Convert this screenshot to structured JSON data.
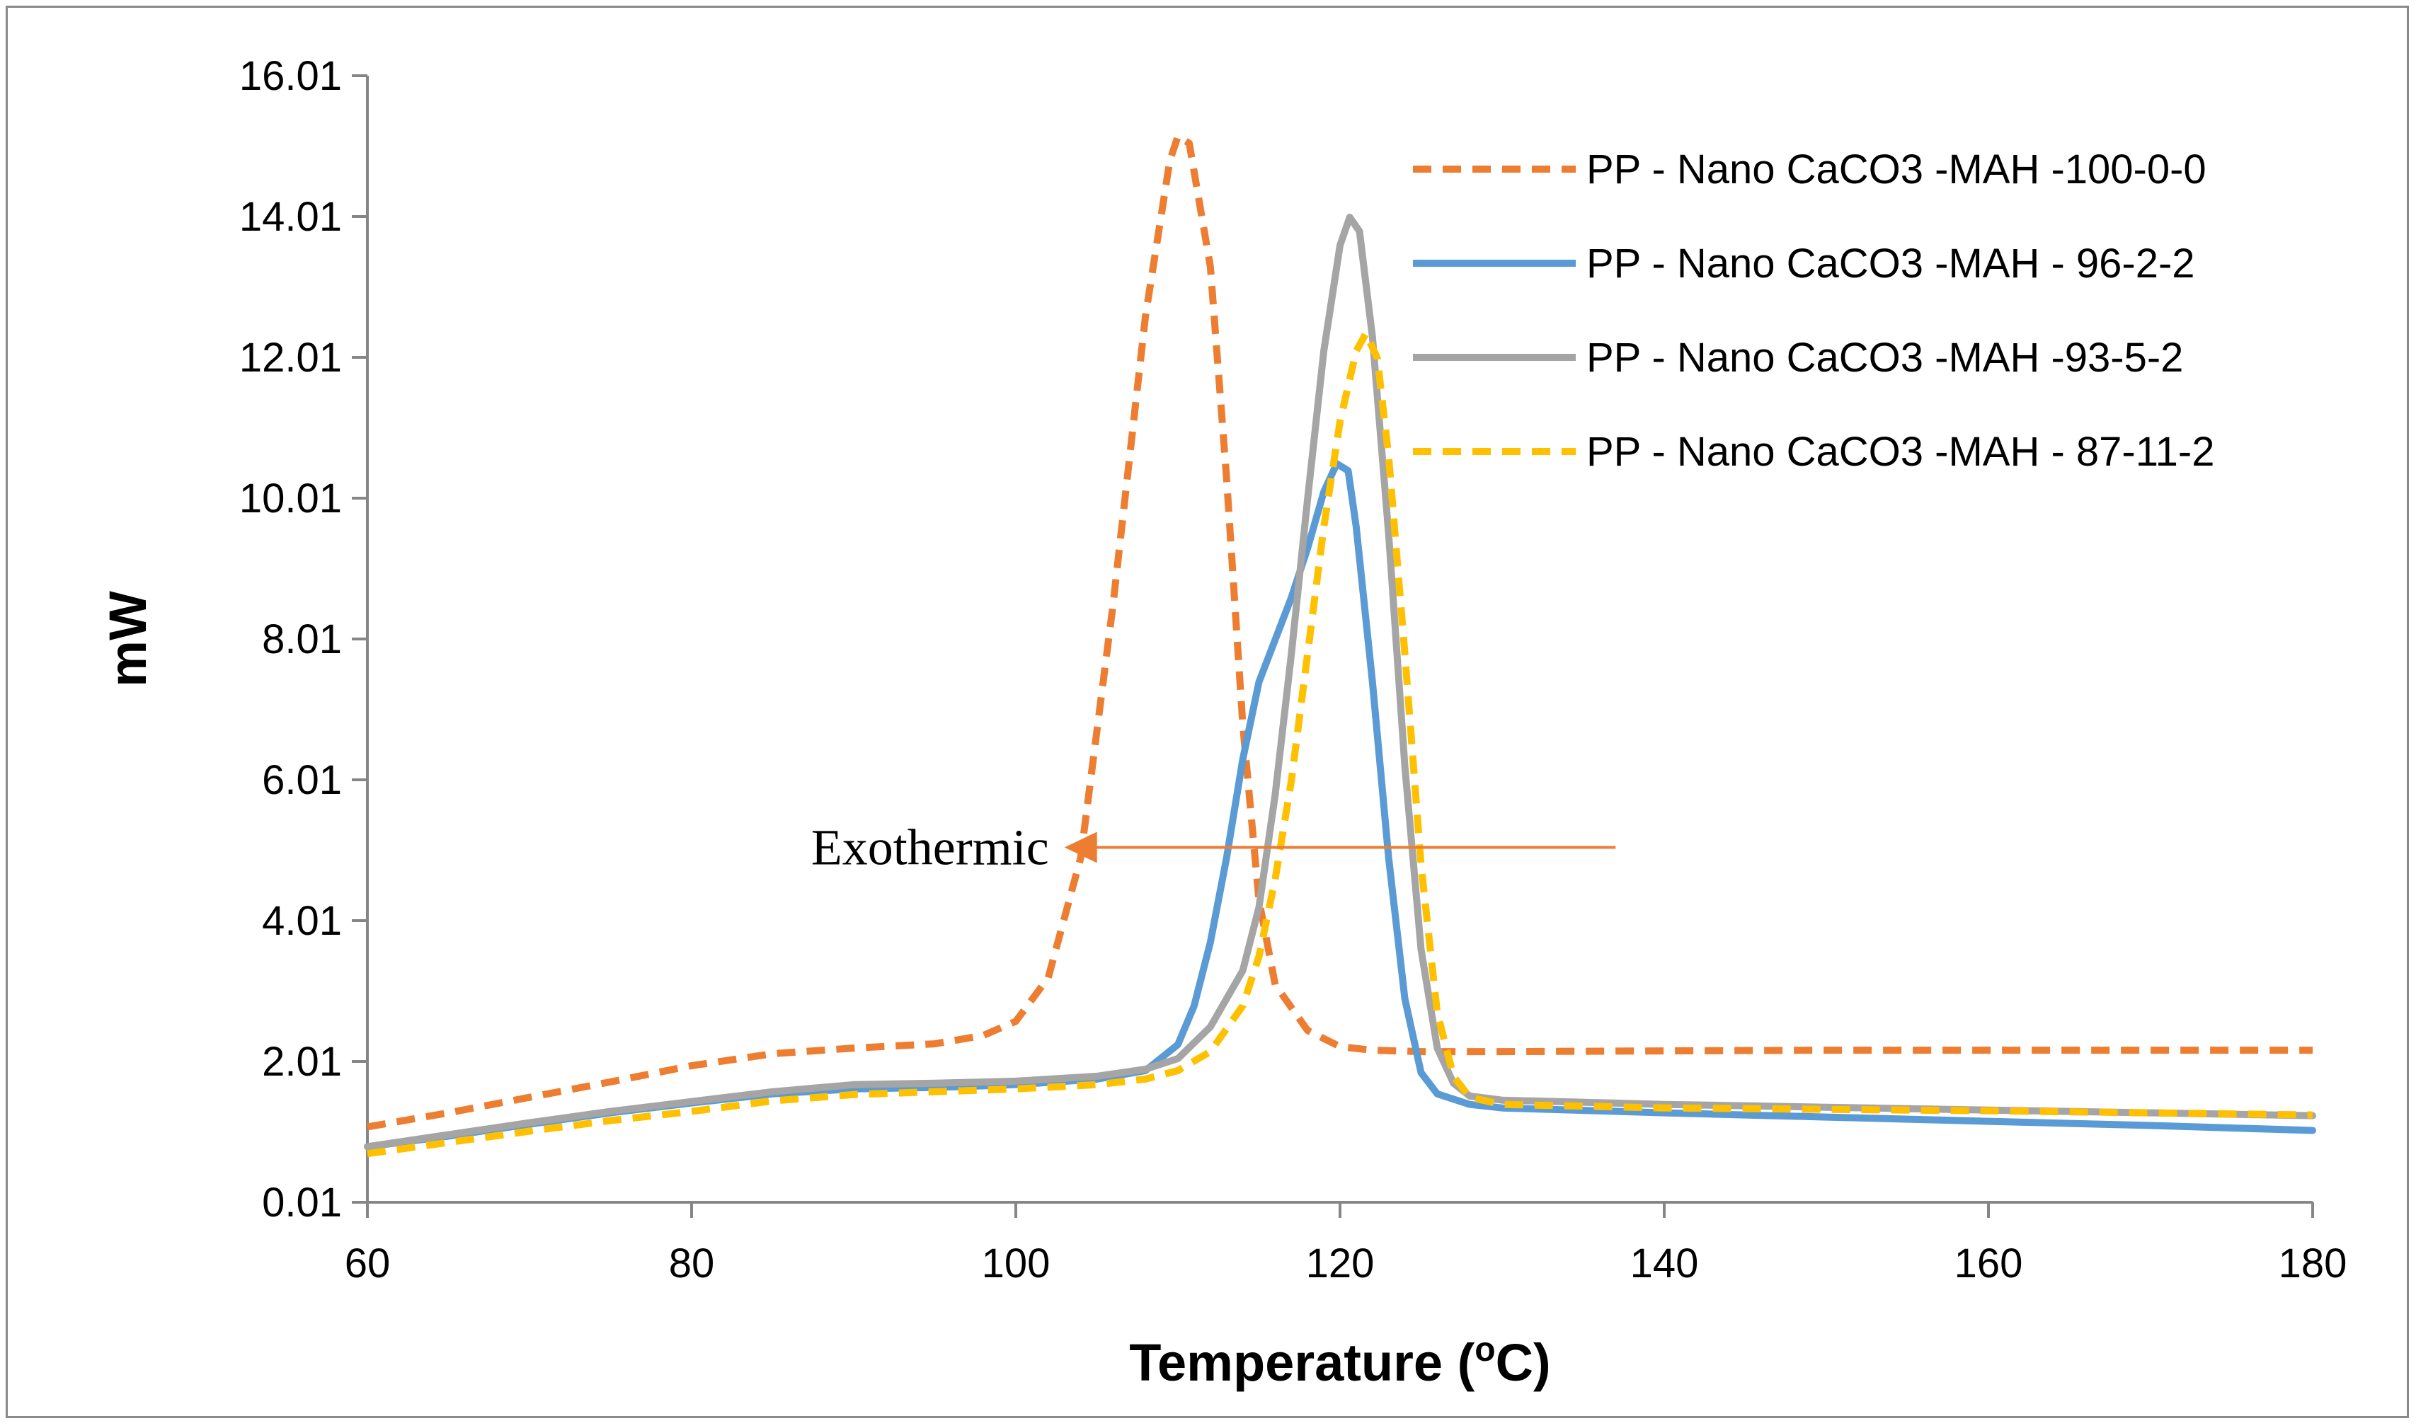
{
  "chart_data": {
    "type": "line",
    "title": "",
    "xlabel": "Temperature (",
    "xlabel_sup": "o",
    "xlabel_unit": "C)",
    "ylabel": "mW",
    "xlim": [
      60,
      180
    ],
    "ylim": [
      0.01,
      16.01
    ],
    "xticks": [
      60,
      80,
      100,
      120,
      140,
      160,
      180
    ],
    "xtick_labels": [
      "60",
      "80",
      "100",
      "120",
      "140",
      "160",
      "180"
    ],
    "yticks": [
      0.01,
      2.01,
      4.01,
      6.01,
      8.01,
      10.01,
      12.01,
      14.01,
      16.01
    ],
    "ytick_labels": [
      "0.01",
      "2.01",
      "4.01",
      "6.01",
      "8.01",
      "10.01",
      "12.01",
      "14.01",
      "16.01"
    ],
    "grid": false,
    "legend_position": "top-right",
    "annotation": {
      "text": "Exothermic",
      "arrow_from_x": 137,
      "arrow_to_x": 103,
      "arrow_y": 5.05,
      "arrow_color": "#ED7D31"
    },
    "series": [
      {
        "name": "PP - Nano CaCO3 -MAH -100-0-0",
        "color": "#ED7D31",
        "dash": "dashed",
        "points": [
          [
            60,
            1.08
          ],
          [
            65,
            1.28
          ],
          [
            70,
            1.5
          ],
          [
            75,
            1.72
          ],
          [
            80,
            1.95
          ],
          [
            85,
            2.12
          ],
          [
            90,
            2.2
          ],
          [
            95,
            2.26
          ],
          [
            98,
            2.38
          ],
          [
            100,
            2.58
          ],
          [
            102,
            3.2
          ],
          [
            104,
            4.9
          ],
          [
            106,
            8.5
          ],
          [
            108,
            12.6
          ],
          [
            109.5,
            14.8
          ],
          [
            110,
            15.15
          ],
          [
            110.7,
            15.05
          ],
          [
            112,
            13.3
          ],
          [
            113,
            10.3
          ],
          [
            114,
            6.8
          ],
          [
            115,
            4.3
          ],
          [
            116,
            3.1
          ],
          [
            118,
            2.45
          ],
          [
            120,
            2.22
          ],
          [
            122,
            2.17
          ],
          [
            125,
            2.15
          ],
          [
            130,
            2.15
          ],
          [
            140,
            2.16
          ],
          [
            150,
            2.17
          ],
          [
            160,
            2.17
          ],
          [
            170,
            2.17
          ],
          [
            180,
            2.17
          ]
        ]
      },
      {
        "name": "PP - Nano CaCO3 -MAH - 96-2-2",
        "color": "#5B9BD5",
        "dash": "solid",
        "points": [
          [
            60,
            0.8
          ],
          [
            65,
            0.95
          ],
          [
            70,
            1.12
          ],
          [
            75,
            1.28
          ],
          [
            80,
            1.42
          ],
          [
            85,
            1.55
          ],
          [
            90,
            1.62
          ],
          [
            95,
            1.64
          ],
          [
            100,
            1.68
          ],
          [
            105,
            1.76
          ],
          [
            108,
            1.88
          ],
          [
            110,
            2.25
          ],
          [
            111,
            2.8
          ],
          [
            112,
            3.7
          ],
          [
            113,
            4.9
          ],
          [
            114,
            6.3
          ],
          [
            115,
            7.4
          ],
          [
            116,
            8.0
          ],
          [
            117,
            8.6
          ],
          [
            118,
            9.3
          ],
          [
            119,
            10.1
          ],
          [
            119.8,
            10.5
          ],
          [
            120.5,
            10.4
          ],
          [
            121,
            9.6
          ],
          [
            122,
            7.4
          ],
          [
            123,
            4.9
          ],
          [
            124,
            2.9
          ],
          [
            125,
            1.85
          ],
          [
            126,
            1.55
          ],
          [
            128,
            1.4
          ],
          [
            130,
            1.35
          ],
          [
            140,
            1.28
          ],
          [
            150,
            1.22
          ],
          [
            160,
            1.16
          ],
          [
            170,
            1.1
          ],
          [
            180,
            1.03
          ]
        ]
      },
      {
        "name": "PP - Nano CaCO3 -MAH -93-5-2",
        "color": "#A5A5A5",
        "dash": "solid",
        "points": [
          [
            60,
            0.8
          ],
          [
            65,
            0.97
          ],
          [
            70,
            1.14
          ],
          [
            75,
            1.3
          ],
          [
            80,
            1.44
          ],
          [
            85,
            1.58
          ],
          [
            90,
            1.68
          ],
          [
            95,
            1.7
          ],
          [
            100,
            1.73
          ],
          [
            105,
            1.8
          ],
          [
            108,
            1.9
          ],
          [
            110,
            2.05
          ],
          [
            112,
            2.5
          ],
          [
            114,
            3.3
          ],
          [
            115,
            4.2
          ],
          [
            116,
            5.8
          ],
          [
            117,
            7.8
          ],
          [
            118,
            10.0
          ],
          [
            119,
            12.1
          ],
          [
            120,
            13.6
          ],
          [
            120.6,
            14.0
          ],
          [
            121.2,
            13.8
          ],
          [
            122,
            12.3
          ],
          [
            123,
            9.5
          ],
          [
            124,
            6.2
          ],
          [
            125,
            3.6
          ],
          [
            126,
            2.2
          ],
          [
            127,
            1.7
          ],
          [
            128,
            1.52
          ],
          [
            130,
            1.46
          ],
          [
            140,
            1.4
          ],
          [
            150,
            1.36
          ],
          [
            160,
            1.32
          ],
          [
            170,
            1.28
          ],
          [
            180,
            1.24
          ]
        ]
      },
      {
        "name": "PP - Nano CaCO3 -MAH - 87-11-2",
        "color": "#FFC000",
        "dash": "dashed",
        "points": [
          [
            60,
            0.7
          ],
          [
            65,
            0.86
          ],
          [
            70,
            1.02
          ],
          [
            75,
            1.17
          ],
          [
            80,
            1.3
          ],
          [
            85,
            1.45
          ],
          [
            90,
            1.54
          ],
          [
            95,
            1.58
          ],
          [
            100,
            1.62
          ],
          [
            105,
            1.68
          ],
          [
            108,
            1.76
          ],
          [
            110,
            1.88
          ],
          [
            112,
            2.15
          ],
          [
            114,
            2.8
          ],
          [
            115,
            3.5
          ],
          [
            116,
            4.6
          ],
          [
            117,
            6.0
          ],
          [
            118,
            7.8
          ],
          [
            119,
            9.6
          ],
          [
            120,
            11.1
          ],
          [
            121,
            12.1
          ],
          [
            121.6,
            12.35
          ],
          [
            122.3,
            12.0
          ],
          [
            123,
            10.6
          ],
          [
            124,
            7.8
          ],
          [
            125,
            4.8
          ],
          [
            126,
            2.7
          ],
          [
            127,
            1.8
          ],
          [
            128,
            1.5
          ],
          [
            130,
            1.4
          ],
          [
            140,
            1.35
          ],
          [
            150,
            1.33
          ],
          [
            160,
            1.31
          ],
          [
            170,
            1.28
          ],
          [
            180,
            1.25
          ]
        ]
      }
    ]
  }
}
